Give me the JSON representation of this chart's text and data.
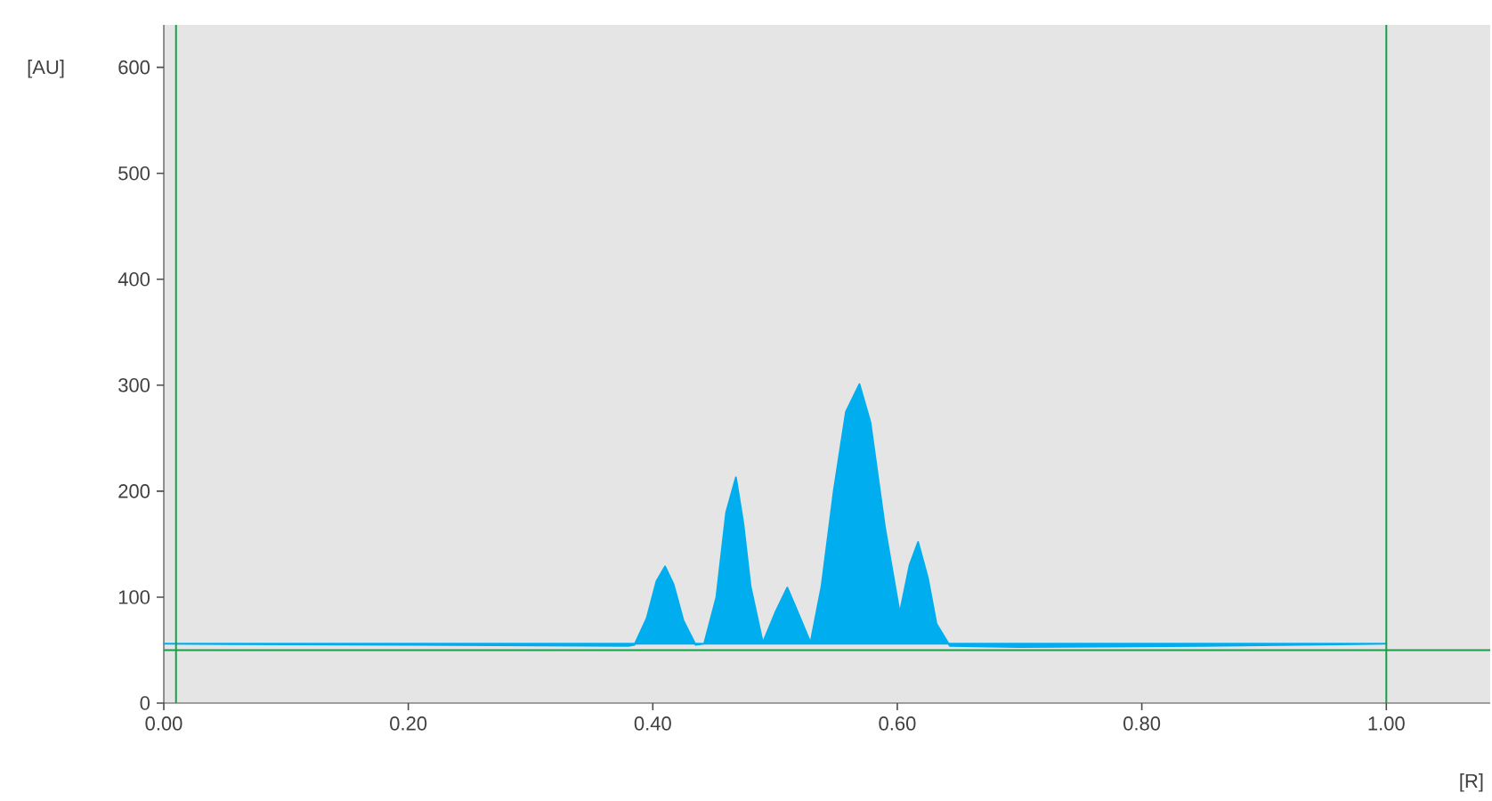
{
  "chart_data": {
    "type": "area",
    "xlabel": "[R]",
    "ylabel": "[AU]",
    "xlim": [
      0,
      1.085
    ],
    "ylim": [
      0,
      640
    ],
    "xticks": [
      {
        "value": 0,
        "label": "0.00"
      },
      {
        "value": 0.2,
        "label": "0.20"
      },
      {
        "value": 0.4,
        "label": "0.40"
      },
      {
        "value": 0.6,
        "label": "0.60"
      },
      {
        "value": 0.8,
        "label": "0.80"
      },
      {
        "value": 1.0,
        "label": "1.00"
      }
    ],
    "yticks": [
      0,
      100,
      200,
      300,
      400,
      500,
      600
    ],
    "series": [
      {
        "color": "#00aeef",
        "x": [
          0.0,
          0.2,
          0.38,
          0.385,
          0.395,
          0.403,
          0.41,
          0.417,
          0.425,
          0.435,
          0.442,
          0.452,
          0.46,
          0.468,
          0.474,
          0.48,
          0.49,
          0.5,
          0.51,
          0.52,
          0.529,
          0.538,
          0.548,
          0.558,
          0.569,
          0.578,
          0.59,
          0.602,
          0.61,
          0.617,
          0.625,
          0.632,
          0.643,
          0.7,
          0.85,
          1.0
        ],
        "values": [
          56,
          55,
          54,
          55,
          80,
          115,
          129,
          112,
          78,
          55,
          56,
          100,
          180,
          213,
          170,
          110,
          57,
          85,
          109,
          82,
          57,
          110,
          200,
          275,
          301,
          265,
          165,
          85,
          130,
          152,
          118,
          75,
          54,
          53,
          54,
          56
        ]
      }
    ],
    "ref_lines": [
      {
        "axis": "x",
        "value": 0.01,
        "color": "#1a9e4a"
      },
      {
        "axis": "x",
        "value": 1.0,
        "color": "#1a9e4a"
      },
      {
        "axis": "y",
        "value": 50,
        "color": "#1a9e4a"
      }
    ]
  }
}
